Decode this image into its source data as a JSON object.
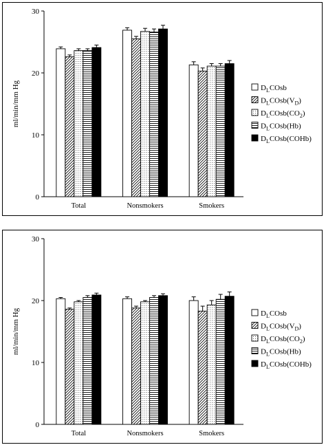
{
  "colors": {
    "axis": "#000000",
    "bar_stroke": "#000000",
    "background": "#ffffff"
  },
  "legend_template": [
    {
      "main": "D",
      "sub": "L",
      "rest": "COsb",
      "pattern": "open",
      "icon": "open-square-icon"
    },
    {
      "main": "D",
      "sub": "L",
      "rest": "COsb(V",
      "sub2": "D",
      "tail": ")",
      "pattern": "diagonal",
      "icon": "diagonal-hatch-square-icon"
    },
    {
      "main": "D",
      "sub": "L",
      "rest": "COsb(CO",
      "sub2": "2",
      "tail": ")",
      "pattern": "dotted",
      "icon": "dotted-square-icon"
    },
    {
      "main": "D",
      "sub": "L",
      "rest": "COsb(Hb)",
      "pattern": "horizontal",
      "icon": "horizontal-hatch-square-icon"
    },
    {
      "main": "D",
      "sub": "L",
      "rest": "COsb(COHb)",
      "pattern": "solid",
      "icon": "solid-square-icon"
    }
  ],
  "chart_data": [
    {
      "type": "bar",
      "ylabel": "ml/min/mm Hg",
      "ylim": [
        0,
        30
      ],
      "yticks": [
        "0",
        "10",
        "20",
        "30"
      ],
      "categories": [
        "Total",
        "Nonsmokers",
        "Smokers"
      ],
      "series": [
        {
          "name": "DLCOsb",
          "values": [
            23.9,
            26.9,
            21.3
          ],
          "errors": [
            0.3,
            0.4,
            0.5
          ]
        },
        {
          "name": "DLCOsb(VD)",
          "values": [
            22.6,
            25.5,
            20.3
          ],
          "errors": [
            0.3,
            0.4,
            0.5
          ]
        },
        {
          "name": "DLCOsb(CO2)",
          "values": [
            23.6,
            26.7,
            21.1
          ],
          "errors": [
            0.3,
            0.5,
            0.4
          ]
        },
        {
          "name": "DLCOsb(Hb)",
          "values": [
            23.6,
            26.6,
            21.1
          ],
          "errors": [
            0.3,
            0.5,
            0.4
          ]
        },
        {
          "name": "DLCOsb(COHb)",
          "values": [
            24.1,
            27.1,
            21.5
          ],
          "errors": [
            0.4,
            0.6,
            0.5
          ]
        }
      ],
      "grid": false,
      "legend": "right"
    },
    {
      "type": "bar",
      "ylabel": "ml/min/mm Hg",
      "ylim": [
        0,
        30
      ],
      "yticks": [
        "0",
        "10",
        "20",
        "30"
      ],
      "categories": [
        "Total",
        "Nonsmokers",
        "Smokers"
      ],
      "series": [
        {
          "name": "DLCOsb",
          "values": [
            20.3,
            20.3,
            20.0
          ],
          "errors": [
            0.2,
            0.3,
            0.6
          ]
        },
        {
          "name": "DLCOsb(VD)",
          "values": [
            18.6,
            18.8,
            18.3
          ],
          "errors": [
            0.2,
            0.3,
            0.8
          ]
        },
        {
          "name": "DLCOsb(CO2)",
          "values": [
            19.8,
            19.8,
            19.3
          ],
          "errors": [
            0.2,
            0.2,
            0.7
          ]
        },
        {
          "name": "DLCOsb(Hb)",
          "values": [
            20.5,
            20.5,
            20.2
          ],
          "errors": [
            0.3,
            0.3,
            0.8
          ]
        },
        {
          "name": "DLCOsb(COHb)",
          "values": [
            20.9,
            20.8,
            20.7
          ],
          "errors": [
            0.3,
            0.3,
            0.7
          ]
        }
      ],
      "grid": false,
      "legend": "right"
    }
  ]
}
